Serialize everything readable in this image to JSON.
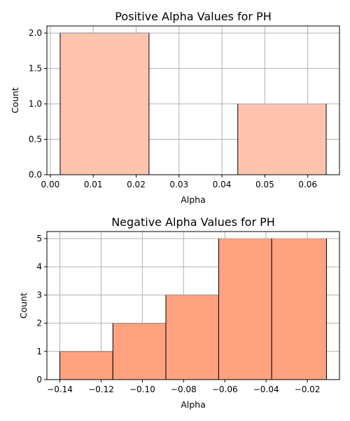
{
  "chart_data": [
    {
      "type": "bar",
      "title": "Positive Alpha Values for PH",
      "xlabel": "Alpha",
      "ylabel": "Count",
      "xlim": [
        -0.0008,
        0.0674
      ],
      "ylim": [
        0,
        2.1
      ],
      "xticks": [
        0.0,
        0.01,
        0.02,
        0.03,
        0.04,
        0.05,
        0.06
      ],
      "xtick_labels": [
        "0.00",
        "0.01",
        "0.02",
        "0.03",
        "0.04",
        "0.05",
        "0.06"
      ],
      "yticks": [
        0.0,
        0.5,
        1.0,
        1.5,
        2.0
      ],
      "ytick_labels": [
        "0.0",
        "0.5",
        "1.0",
        "1.5",
        "2.0"
      ],
      "bins": [
        {
          "start": 0.0023,
          "end": 0.023,
          "count": 2
        },
        {
          "start": 0.023,
          "end": 0.0437,
          "count": 0
        },
        {
          "start": 0.0437,
          "end": 0.0643,
          "count": 1
        }
      ],
      "grid": true,
      "bar_color": "#ffc4b0"
    },
    {
      "type": "bar",
      "title": "Negative Alpha Values for PH",
      "xlabel": "Alpha",
      "ylabel": "Count",
      "xlim": [
        -0.1463,
        -0.0044
      ],
      "ylim": [
        0,
        5.25
      ],
      "xticks": [
        -0.14,
        -0.12,
        -0.1,
        -0.08,
        -0.06,
        -0.04,
        -0.02
      ],
      "xtick_labels": [
        "−0.14",
        "−0.12",
        "−0.10",
        "−0.08",
        "−0.06",
        "−0.04",
        "−0.02"
      ],
      "yticks": [
        0,
        1,
        2,
        3,
        4,
        5
      ],
      "ytick_labels": [
        "0",
        "1",
        "2",
        "3",
        "4",
        "5"
      ],
      "bins": [
        {
          "start": -0.14,
          "end": -0.1143,
          "count": 1
        },
        {
          "start": -0.1143,
          "end": -0.0886,
          "count": 2
        },
        {
          "start": -0.0886,
          "end": -0.063,
          "count": 3
        },
        {
          "start": -0.063,
          "end": -0.0373,
          "count": 5
        },
        {
          "start": -0.0373,
          "end": -0.0107,
          "count": 5
        }
      ],
      "grid": true,
      "bar_color": "#ffa280"
    }
  ]
}
